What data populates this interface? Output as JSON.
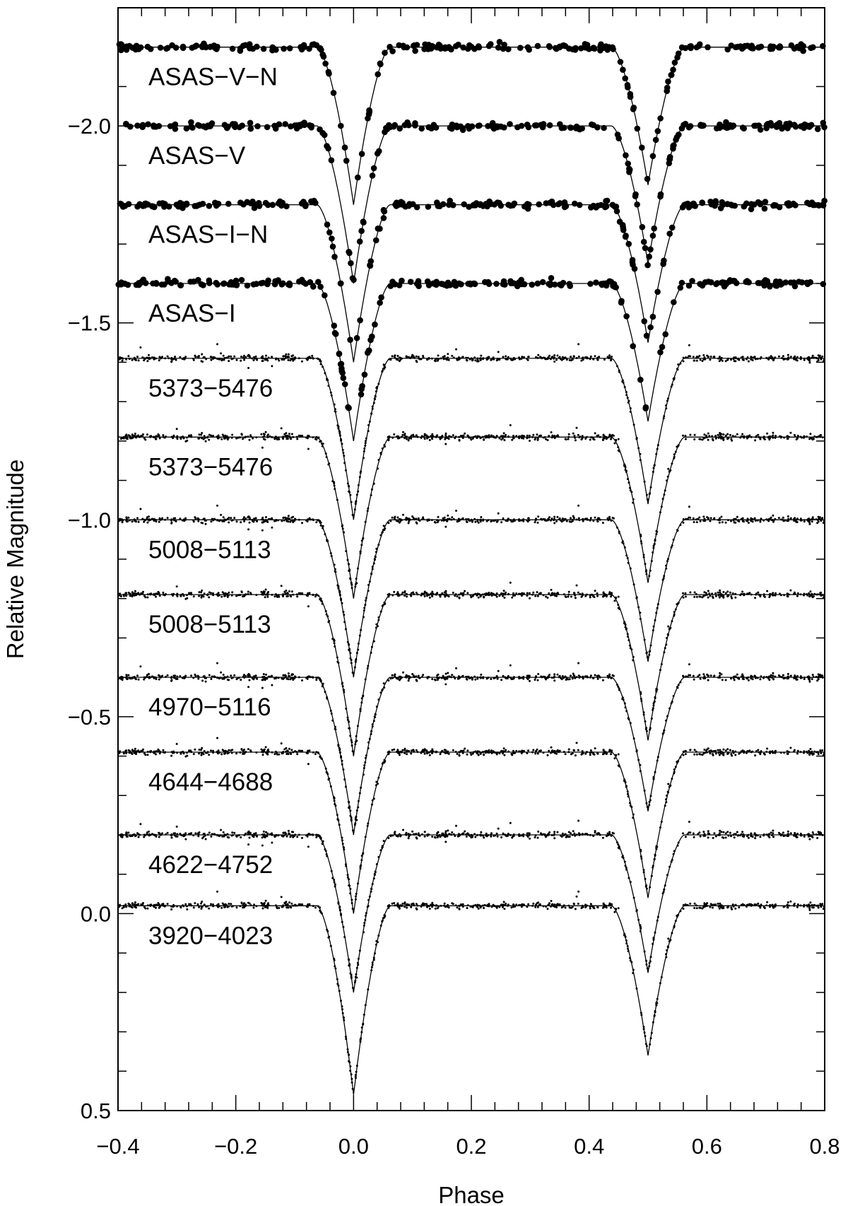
{
  "chart_data": {
    "type": "scatter",
    "xlabel": "Phase",
    "ylabel": "Relative Magnitude",
    "xlim": [
      -0.4,
      0.8
    ],
    "ylim": [
      0.5,
      -2.3
    ],
    "y_inverted": true,
    "xticks": {
      "values": [
        -0.4,
        -0.2,
        0.0,
        0.2,
        0.4,
        0.6,
        0.8
      ],
      "labels": [
        "−0.4",
        "−0.2",
        "0.0",
        "0.2",
        "0.4",
        "0.6",
        "0.8"
      ]
    },
    "yticks": {
      "values": [
        -2.0,
        -1.5,
        -1.0,
        -0.5,
        0.0,
        0.5
      ],
      "labels": [
        "−2.0",
        "−1.5",
        "−1.0",
        "−0.5",
        "0.0",
        "0.5"
      ]
    },
    "grid": false,
    "legend": "none",
    "model_curve": "solid black line fitted to each series",
    "primary_eclipse_phase": 0.0,
    "secondary_eclipse_phase": 0.5,
    "series": [
      {
        "name": "ASAS−V−N",
        "out_of_eclipse_mag": -2.2,
        "primary_min_mag": -1.8,
        "secondary_min_mag": -1.85,
        "marker": "large-dot"
      },
      {
        "name": "ASAS−V",
        "out_of_eclipse_mag": -2.0,
        "primary_min_mag": -1.6,
        "secondary_min_mag": -1.65,
        "marker": "large-dot"
      },
      {
        "name": "ASAS−I−N",
        "out_of_eclipse_mag": -1.8,
        "primary_min_mag": -1.4,
        "secondary_min_mag": -1.45,
        "marker": "large-dot"
      },
      {
        "name": "ASAS−I",
        "out_of_eclipse_mag": -1.6,
        "primary_min_mag": -1.2,
        "secondary_min_mag": -1.25,
        "marker": "large-dot"
      },
      {
        "name": "5373−5476",
        "out_of_eclipse_mag": -1.41,
        "primary_min_mag": -1.0,
        "secondary_min_mag": -1.04,
        "marker": "small-dot"
      },
      {
        "name": "5373−5476",
        "out_of_eclipse_mag": -1.21,
        "primary_min_mag": -0.8,
        "secondary_min_mag": -0.84,
        "marker": "small-dot"
      },
      {
        "name": "5008−5113",
        "out_of_eclipse_mag": -1.0,
        "primary_min_mag": -0.6,
        "secondary_min_mag": -0.64,
        "marker": "small-dot"
      },
      {
        "name": "5008−5113",
        "out_of_eclipse_mag": -0.81,
        "primary_min_mag": -0.4,
        "secondary_min_mag": -0.44,
        "marker": "small-dot"
      },
      {
        "name": "4970−5116",
        "out_of_eclipse_mag": -0.6,
        "primary_min_mag": -0.2,
        "secondary_min_mag": -0.26,
        "marker": "small-dot"
      },
      {
        "name": "4644−4688",
        "out_of_eclipse_mag": -0.41,
        "primary_min_mag": 0.0,
        "secondary_min_mag": -0.04,
        "marker": "small-dot"
      },
      {
        "name": "4622−4752",
        "out_of_eclipse_mag": -0.2,
        "primary_min_mag": 0.2,
        "secondary_min_mag": 0.15,
        "marker": "small-dot"
      },
      {
        "name": "3920−4023",
        "out_of_eclipse_mag": -0.02,
        "primary_min_mag": 0.46,
        "secondary_min_mag": 0.36,
        "marker": "small-dot"
      }
    ]
  }
}
